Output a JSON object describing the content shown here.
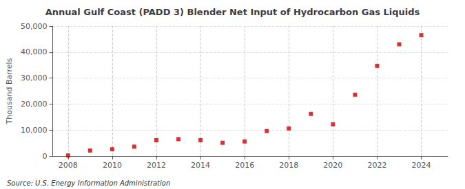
{
  "chart_data": {
    "type": "scatter",
    "title": "Annual Gulf Coast (PADD 3) Blender Net Input of Hydrocarbon Gas Liquids",
    "ylabel": "Thousand Barrels",
    "annotations": [
      "Source: U.S. Energy Information Administration"
    ],
    "x": [
      2008,
      2009,
      2010,
      2011,
      2012,
      2013,
      2014,
      2015,
      2016,
      2017,
      2018,
      2019,
      2020,
      2021,
      2022,
      2023,
      2024
    ],
    "values": [
      200,
      2100,
      2600,
      3600,
      6100,
      6500,
      6100,
      5100,
      5600,
      9600,
      10600,
      16200,
      12200,
      23600,
      34700,
      43000,
      46500
    ],
    "color": "#cc0000",
    "marker": "square",
    "xlim": [
      2007.3,
      2025.2
    ],
    "xticks": [
      2008,
      2010,
      2012,
      2014,
      2016,
      2018,
      2020,
      2022,
      2024
    ],
    "ylim": [
      0,
      50000
    ],
    "yticks": [
      0,
      {
        "value": 10000,
        "label": "10,000"
      },
      {
        "value": 20000,
        "label": "20,000"
      },
      {
        "value": 30000,
        "label": "30,000"
      },
      {
        "value": 40000,
        "label": "40,000"
      },
      {
        "value": 50000,
        "label": "50,000"
      }
    ],
    "grid": true
  }
}
